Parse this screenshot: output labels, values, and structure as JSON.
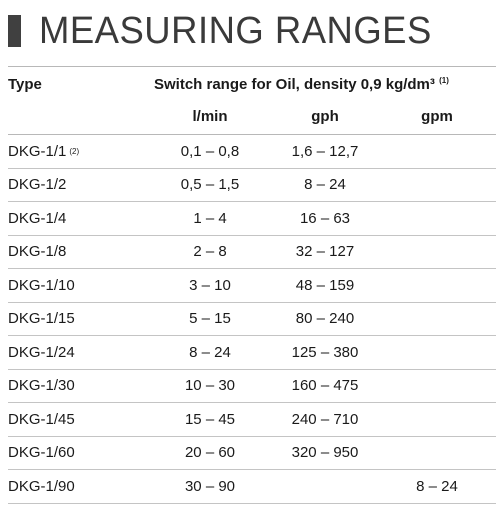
{
  "heading": "MEASURING RANGES",
  "table": {
    "type_header": "Type",
    "range_header": "Switch range for Oil, density 0,9 kg/dm³",
    "range_note": "(1)",
    "units": {
      "lmin": "l/min",
      "gph": "gph",
      "gpm": "gpm"
    },
    "rows": [
      {
        "type": "DKG-1/1",
        "note": "(2)",
        "lmin": "0,1 – 0,8",
        "gph": "1,6 – 12,7",
        "gpm": ""
      },
      {
        "type": "DKG-1/2",
        "note": "",
        "lmin": "0,5 – 1,5",
        "gph": "8 – 24",
        "gpm": ""
      },
      {
        "type": "DKG-1/4",
        "note": "",
        "lmin": "1 – 4",
        "gph": "16 – 63",
        "gpm": ""
      },
      {
        "type": "DKG-1/8",
        "note": "",
        "lmin": "2 – 8",
        "gph": "32 – 127",
        "gpm": ""
      },
      {
        "type": "DKG-1/10",
        "note": "",
        "lmin": "3 – 10",
        "gph": "48 – 159",
        "gpm": ""
      },
      {
        "type": "DKG-1/15",
        "note": "",
        "lmin": "5 – 15",
        "gph": "80 – 240",
        "gpm": ""
      },
      {
        "type": "DKG-1/24",
        "note": "",
        "lmin": "8 – 24",
        "gph": "125 – 380",
        "gpm": ""
      },
      {
        "type": "DKG-1/30",
        "note": "",
        "lmin": "10 – 30",
        "gph": "160 – 475",
        "gpm": ""
      },
      {
        "type": "DKG-1/45",
        "note": "",
        "lmin": "15 – 45",
        "gph": "240 – 710",
        "gpm": ""
      },
      {
        "type": "DKG-1/60",
        "note": "",
        "lmin": "20 – 60",
        "gph": "320 – 950",
        "gpm": ""
      },
      {
        "type": "DKG-1/90",
        "note": "",
        "lmin": "30 – 90",
        "gph": "",
        "gpm": "8 – 24"
      }
    ]
  }
}
